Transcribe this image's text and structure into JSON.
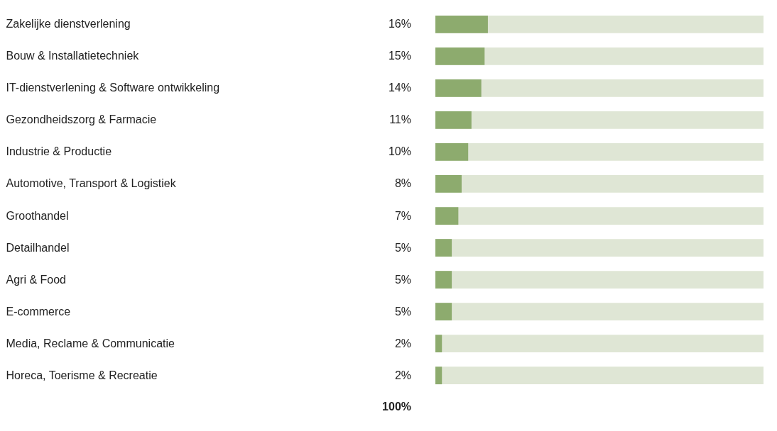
{
  "chart_data": {
    "type": "bar",
    "orientation": "horizontal",
    "categories": [
      "Zakelijke dienstverlening",
      "Bouw & Installatietechniek",
      "IT-dienstverlening & Software ontwikkeling",
      "Gezondheidszorg & Farmacie",
      "Industrie & Productie",
      "Automotive, Transport & Logistiek",
      "Groothandel",
      "Detailhandel",
      "Agri & Food",
      "E-commerce",
      "Media, Reclame & Communicatie",
      "Horeca, Toerisme & Recreatie"
    ],
    "values": [
      16,
      15,
      14,
      11,
      10,
      8,
      7,
      5,
      5,
      5,
      2,
      2
    ],
    "value_labels": [
      "16%",
      "15%",
      "14%",
      "11%",
      "10%",
      "8%",
      "7%",
      "5%",
      "5%",
      "5%",
      "2%",
      "2%"
    ],
    "color": "#8dab6e",
    "xlim": [
      0,
      100
    ],
    "bands": [
      {
        "axis": "x",
        "from": 0,
        "to": 100,
        "color": "#dfe6d5"
      }
    ],
    "annotations": [
      "100%"
    ],
    "tick_labels": "y"
  }
}
